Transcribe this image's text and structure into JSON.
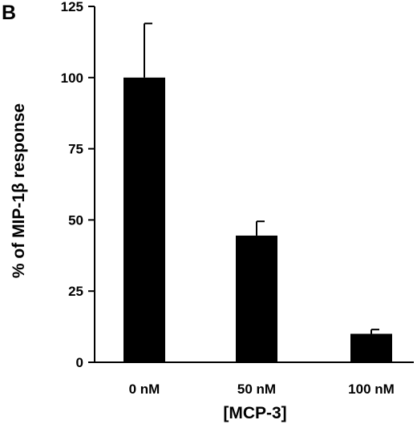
{
  "panel_label": "B",
  "chart_data": {
    "type": "bar",
    "title": "",
    "categories": [
      "0 nM",
      "50 nM",
      "100 nM"
    ],
    "values": [
      100,
      44.5,
      10
    ],
    "error_plus": [
      19,
      5,
      1.5
    ],
    "ylabel": "% of MIP-1β response",
    "xlabel": "[MCP-3]",
    "ylim": [
      0,
      125
    ],
    "yticks": [
      0,
      25,
      50,
      75,
      100,
      125
    ],
    "ytick_labels": [
      "0",
      "25",
      "50",
      "75",
      "100",
      "125"
    ],
    "grid": false,
    "legend": "none",
    "bar_color": "#000000"
  }
}
